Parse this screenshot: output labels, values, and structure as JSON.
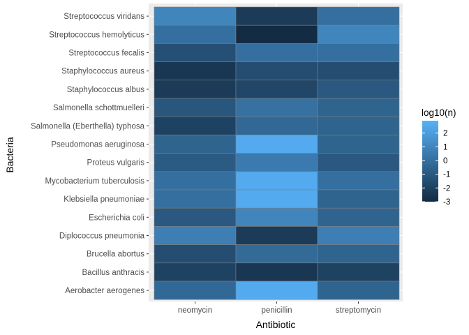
{
  "chart_data": {
    "type": "heatmap",
    "title": "",
    "xlabel": "Antibiotic",
    "ylabel": "Bacteria",
    "x_categories": [
      "neomycin",
      "penicillin",
      "streptomycin"
    ],
    "y_categories": [
      "Streptococcus viridans",
      "Streptococcus hemolyticus",
      "Streptococcus fecalis",
      "Staphylococcus aureus",
      "Staphylococcus albus",
      "Salmonella schottmuelleri",
      "Salmonella (Eberthella) typhosa",
      "Pseudomonas aeruginosa",
      "Proteus vulgaris",
      "Mycobacterium tuberculosis",
      "Klebsiella pneumoniae",
      "Escherichia coli",
      "Diplococcus pneumonia",
      "Brucella abortus",
      "Bacillus anthracis",
      "Aerobacter aerogenes"
    ],
    "values": [
      [
        1.0,
        -2.3,
        0.0
      ],
      [
        0.0,
        -3.0,
        1.0
      ],
      [
        -1.4,
        0.0,
        0.0
      ],
      [
        -2.5,
        -1.5,
        -1.5
      ],
      [
        -2.3,
        -1.8,
        -1.0
      ],
      [
        -1.1,
        0.1,
        -0.5
      ],
      [
        -2.0,
        -0.3,
        -0.5
      ],
      [
        -0.5,
        2.6,
        -0.5
      ],
      [
        -0.9,
        0.5,
        -1.0
      ],
      [
        0.0,
        2.6,
        0.0
      ],
      [
        0.0,
        2.6,
        -0.5
      ],
      [
        -1.0,
        1.0,
        -0.5
      ],
      [
        0.7,
        -2.3,
        0.7
      ],
      [
        -1.5,
        -0.2,
        -0.5
      ],
      [
        -2.0,
        -2.5,
        -2.0
      ],
      [
        -0.3,
        2.6,
        -0.5
      ]
    ],
    "legend": {
      "title": "log10(n)",
      "ticks": [
        2,
        1,
        0,
        -1,
        -2,
        -3
      ],
      "range": [
        -3.0,
        2.9
      ],
      "low_color": "#132B43",
      "high_color": "#56B1F7",
      "placement": "right"
    },
    "panel_background": "#EBEBEB",
    "gridline_color": "#FFFFFF",
    "tile_border": "#808080",
    "grid": true
  }
}
